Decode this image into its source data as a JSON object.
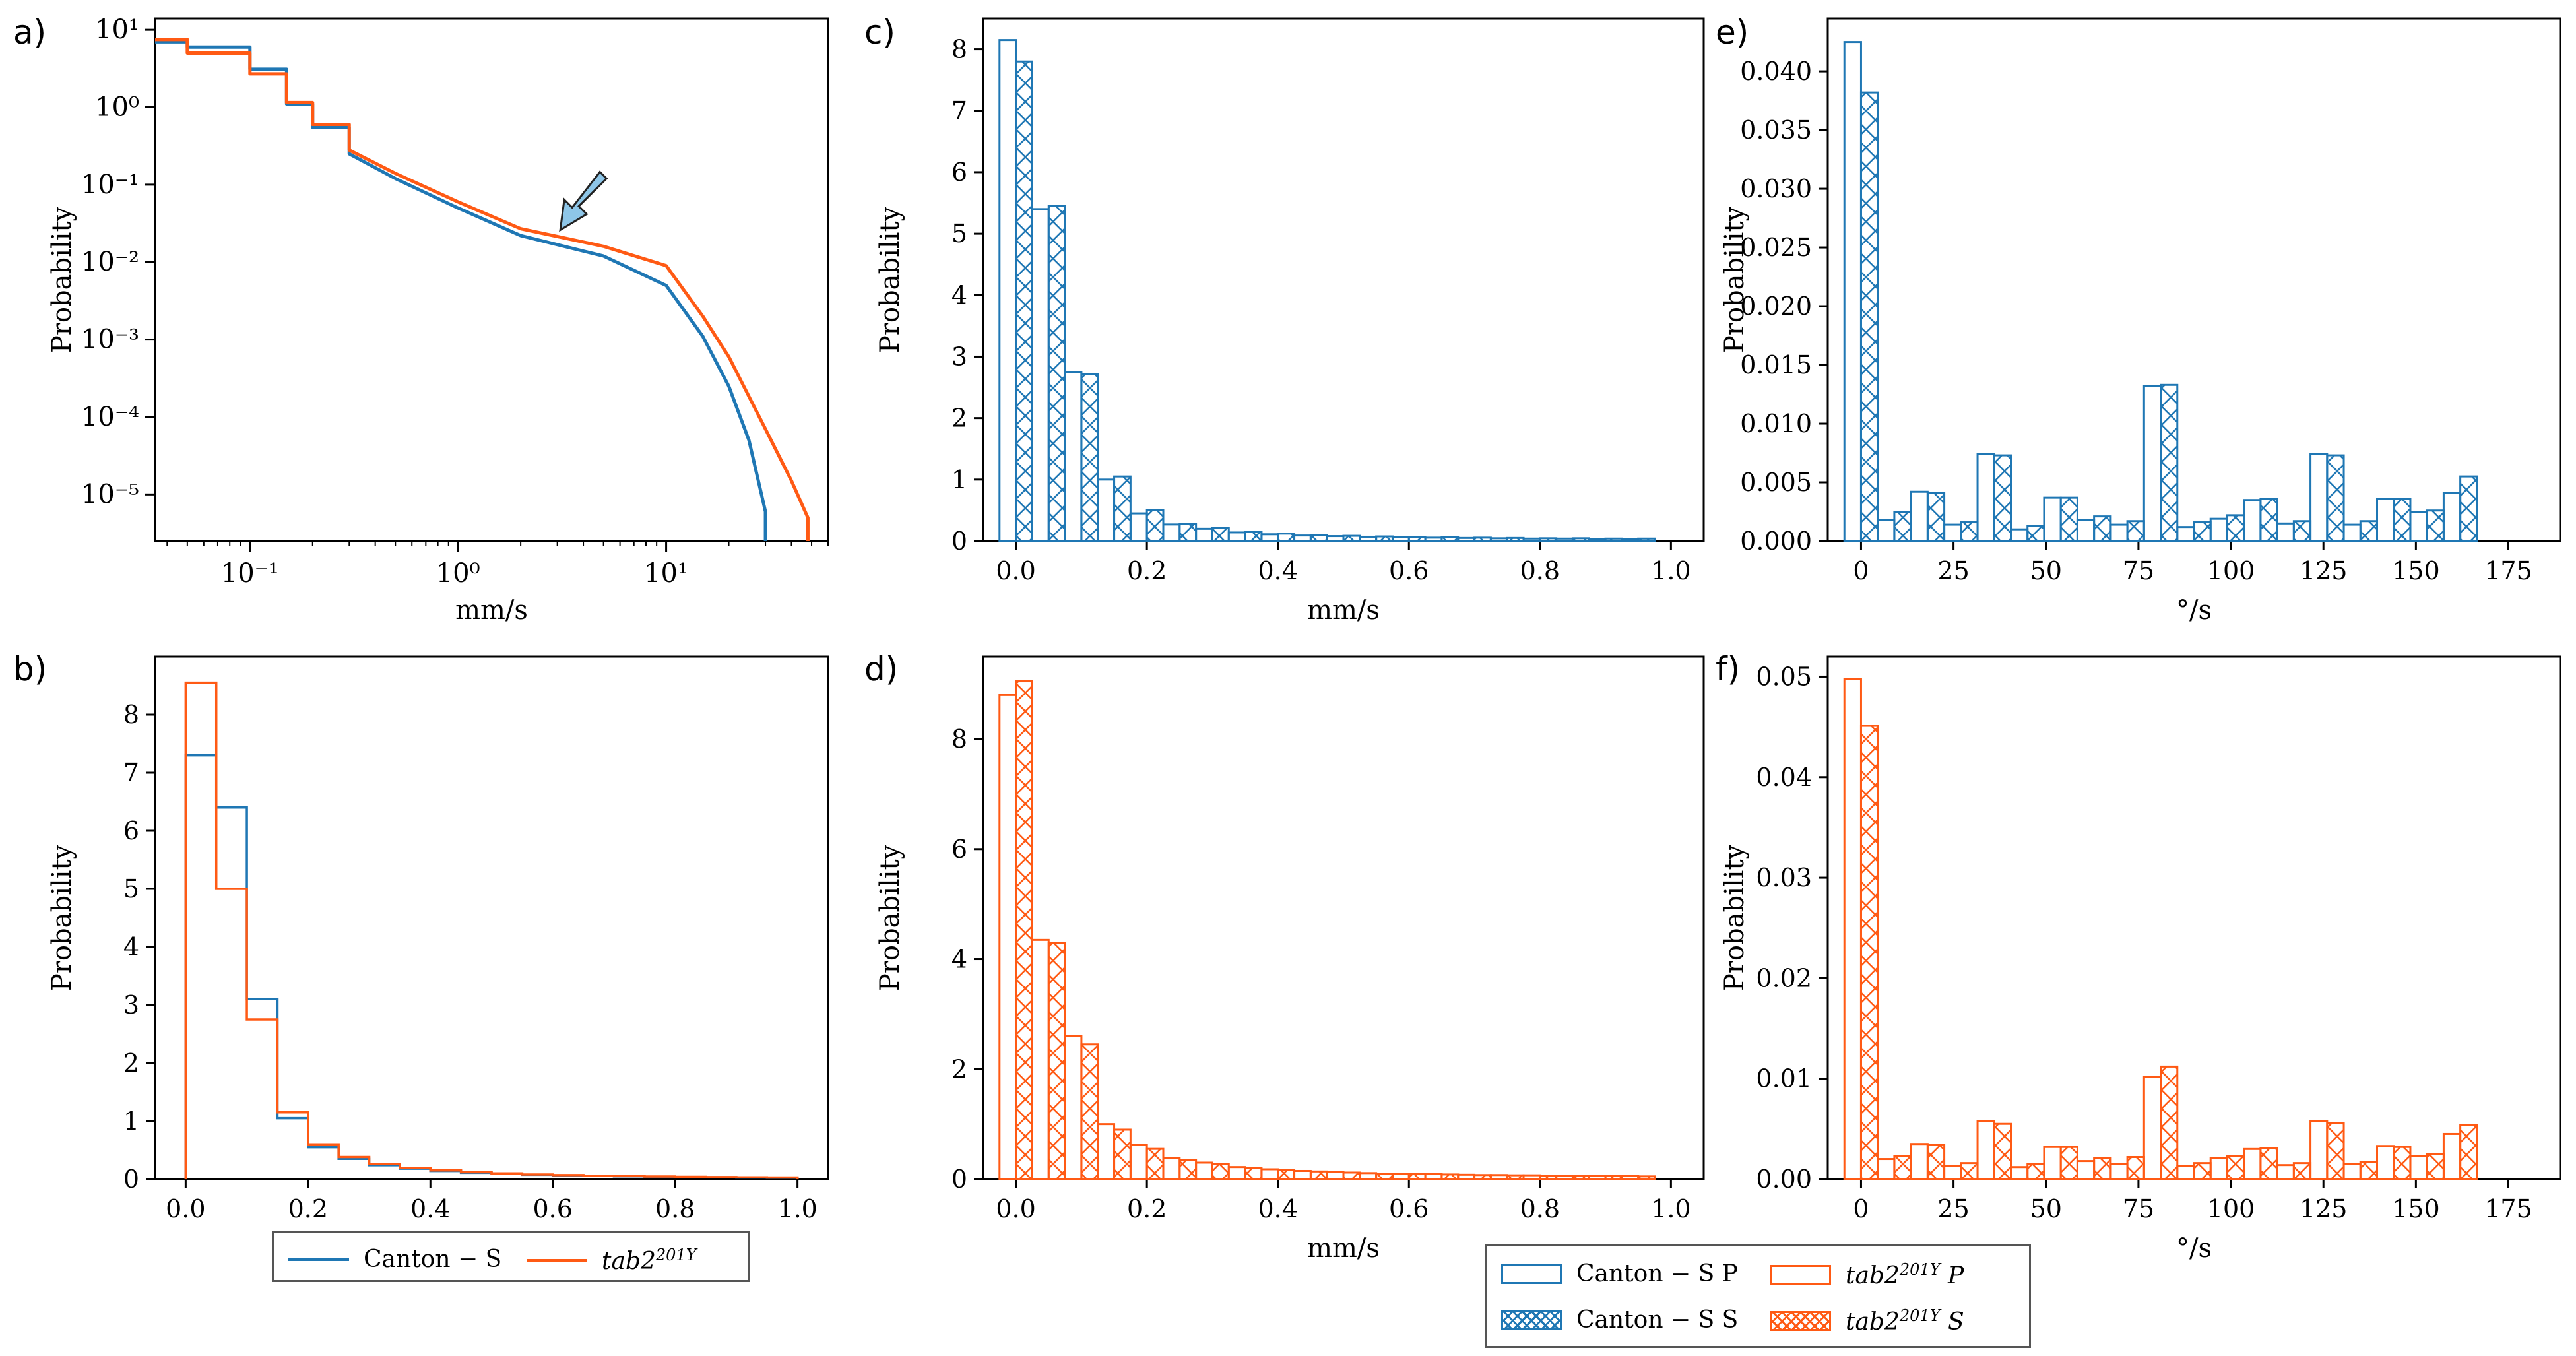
{
  "colors": {
    "canton": "#1f77b4",
    "tab2": "#ff5a14"
  },
  "panels": {
    "a": {
      "letter": "a)",
      "ylabel": "Probability",
      "xlabel": "mm/s",
      "xticks": [
        "10⁻¹",
        "10⁰",
        "10¹"
      ],
      "yticks": [
        "10¹",
        "10⁰",
        "10⁻¹",
        "10⁻²",
        "10⁻³",
        "10⁻⁴",
        "10⁻⁵"
      ]
    },
    "b": {
      "letter": "b)",
      "ylabel": "Probability",
      "xlabel": "mm/s"
    },
    "c": {
      "letter": "c)",
      "ylabel": "Probability",
      "xlabel": "mm/s"
    },
    "d": {
      "letter": "d)",
      "ylabel": "Probability",
      "xlabel": "mm/s"
    },
    "e": {
      "letter": "e)",
      "ylabel": "Probability",
      "xlabel": "°/s"
    },
    "f": {
      "letter": "f)",
      "ylabel": "Probability",
      "xlabel": "°/s"
    }
  },
  "legend1": {
    "canton": "Canton − S",
    "tab2": "tab2",
    "tab2_sup": "201Y"
  },
  "legend2": {
    "canton_p": "Canton − S P",
    "canton_s": "Canton − S S",
    "tab2": "tab2",
    "tab2_sup": "201Y",
    "tab2_p": " P",
    "tab2_s": " S"
  },
  "chart_data": [
    {
      "panel": "a",
      "type": "line",
      "title": "",
      "xlabel": "mm/s",
      "ylabel": "Probability",
      "xscale": "log",
      "yscale": "log",
      "xlim": [
        0.035,
        60
      ],
      "ylim": [
        2.5e-06,
        14
      ],
      "annotation": "arrow pointing at shoulder near 3 mm/s",
      "series": [
        {
          "name": "Canton − S",
          "color": "#1f77b4",
          "x": [
            0.035,
            0.05,
            0.1,
            0.15,
            0.2,
            0.3,
            0.5,
            1,
            2,
            5,
            10,
            15,
            20,
            25,
            30
          ],
          "y": [
            7,
            6,
            3.1,
            1.1,
            0.55,
            0.25,
            0.12,
            0.05,
            0.022,
            0.012,
            0.005,
            0.0011,
            0.00025,
            5e-05,
            6e-06
          ]
        },
        {
          "name": "tab2201Y",
          "color": "#ff5a14",
          "x": [
            0.035,
            0.05,
            0.1,
            0.15,
            0.2,
            0.3,
            0.5,
            1,
            2,
            5,
            10,
            15,
            20,
            30,
            40,
            48
          ],
          "y": [
            7.5,
            5,
            2.7,
            1.15,
            0.6,
            0.28,
            0.14,
            0.06,
            0.027,
            0.016,
            0.009,
            0.002,
            0.0006,
            7e-05,
            1.5e-05,
            5e-06
          ]
        }
      ]
    },
    {
      "panel": "b",
      "type": "bar",
      "title": "",
      "xlabel": "mm/s",
      "ylabel": "Probability",
      "bin_width": 0.05,
      "xlim": [
        -0.05,
        1.05
      ],
      "ylim": [
        0,
        9
      ],
      "xticks": [
        0.0,
        0.2,
        0.4,
        0.6,
        0.8,
        1.0
      ],
      "yticks": [
        0,
        1,
        2,
        3,
        4,
        5,
        6,
        7,
        8
      ],
      "series": [
        {
          "name": "Canton − S",
          "color": "#1f77b4",
          "values": [
            7.3,
            6.4,
            3.1,
            1.05,
            0.55,
            0.35,
            0.24,
            0.18,
            0.14,
            0.11,
            0.09,
            0.075,
            0.065,
            0.055,
            0.048,
            0.042,
            0.036,
            0.032,
            0.028,
            0.025
          ]
        },
        {
          "name": "tab2201Y",
          "color": "#ff5a14",
          "values": [
            8.55,
            5.0,
            2.75,
            1.15,
            0.6,
            0.38,
            0.26,
            0.19,
            0.15,
            0.12,
            0.1,
            0.08,
            0.07,
            0.06,
            0.052,
            0.045,
            0.04,
            0.035,
            0.031,
            0.028
          ]
        }
      ]
    },
    {
      "panel": "c",
      "type": "bar",
      "title": "",
      "xlabel": "mm/s",
      "ylabel": "Probability",
      "bin_width": 0.05,
      "xlim": [
        -0.05,
        1.05
      ],
      "ylim": [
        0,
        8.5
      ],
      "xticks": [
        0.0,
        0.2,
        0.4,
        0.6,
        0.8,
        1.0
      ],
      "yticks": [
        0,
        1,
        2,
        3,
        4,
        5,
        6,
        7,
        8
      ],
      "series": [
        {
          "name": "Canton − S P",
          "color": "#1f77b4",
          "hatch": false,
          "values": [
            8.15,
            5.4,
            2.75,
            1.0,
            0.45,
            0.27,
            0.2,
            0.14,
            0.11,
            0.09,
            0.08,
            0.07,
            0.06,
            0.055,
            0.05,
            0.045,
            0.04,
            0.04,
            0.035,
            0.035
          ]
        },
        {
          "name": "Canton − S S",
          "color": "#1f77b4",
          "hatch": true,
          "values": [
            7.8,
            5.45,
            2.72,
            1.05,
            0.5,
            0.28,
            0.22,
            0.15,
            0.12,
            0.1,
            0.085,
            0.075,
            0.065,
            0.06,
            0.055,
            0.05,
            0.045,
            0.045,
            0.04,
            0.04
          ]
        }
      ]
    },
    {
      "panel": "d",
      "type": "bar",
      "title": "",
      "xlabel": "mm/s",
      "ylabel": "Probability",
      "bin_width": 0.05,
      "xlim": [
        -0.05,
        1.05
      ],
      "ylim": [
        0,
        9.5
      ],
      "xticks": [
        0.0,
        0.2,
        0.4,
        0.6,
        0.8,
        1.0
      ],
      "yticks": [
        0,
        2,
        4,
        6,
        8
      ],
      "series": [
        {
          "name": "tab2201Y P",
          "color": "#ff5a14",
          "hatch": false,
          "values": [
            8.8,
            4.35,
            2.6,
            1.0,
            0.62,
            0.38,
            0.3,
            0.22,
            0.18,
            0.15,
            0.13,
            0.11,
            0.1,
            0.09,
            0.08,
            0.075,
            0.07,
            0.065,
            0.06,
            0.055
          ]
        },
        {
          "name": "tab2201Y S",
          "color": "#ff5a14",
          "hatch": true,
          "values": [
            9.05,
            4.3,
            2.45,
            0.9,
            0.55,
            0.35,
            0.28,
            0.2,
            0.17,
            0.14,
            0.12,
            0.1,
            0.095,
            0.085,
            0.075,
            0.07,
            0.065,
            0.06,
            0.055,
            0.05
          ]
        }
      ]
    },
    {
      "panel": "e",
      "type": "bar",
      "title": "",
      "xlabel": "°/s",
      "ylabel": "Probability",
      "bin_width": 9,
      "xlim": [
        -9,
        189
      ],
      "ylim": [
        0,
        0.0445
      ],
      "xticks": [
        0,
        25,
        50,
        75,
        100,
        125,
        150,
        175
      ],
      "yticks": [
        0.0,
        0.005,
        0.01,
        0.015,
        0.02,
        0.025,
        0.03,
        0.035,
        0.04
      ],
      "yticklabels": [
        "0.000",
        "0.005",
        "0.010",
        "0.015",
        "0.020",
        "0.025",
        "0.030",
        "0.035",
        "0.040"
      ],
      "series": [
        {
          "name": "Canton − S P",
          "color": "#1f77b4",
          "hatch": false,
          "values": [
            0.0425,
            0.0018,
            0.0042,
            0.0014,
            0.0074,
            0.001,
            0.0037,
            0.0018,
            0.0014,
            0.0132,
            0.0012,
            0.0019,
            0.0035,
            0.0015,
            0.0074,
            0.0014,
            0.0036,
            0.0025,
            0.0041
          ]
        },
        {
          "name": "Canton − S S",
          "color": "#1f77b4",
          "hatch": true,
          "values": [
            0.0382,
            0.0025,
            0.0041,
            0.0016,
            0.0073,
            0.0013,
            0.0037,
            0.0021,
            0.0017,
            0.0133,
            0.0016,
            0.0022,
            0.0036,
            0.0017,
            0.0073,
            0.0017,
            0.0036,
            0.0026,
            0.0055
          ]
        }
      ]
    },
    {
      "panel": "f",
      "type": "bar",
      "title": "",
      "xlabel": "°/s",
      "ylabel": "Probability",
      "bin_width": 9,
      "xlim": [
        -9,
        189
      ],
      "ylim": [
        0,
        0.052
      ],
      "xticks": [
        0,
        25,
        50,
        75,
        100,
        125,
        150,
        175
      ],
      "yticks": [
        0.0,
        0.01,
        0.02,
        0.03,
        0.04,
        0.05
      ],
      "yticklabels": [
        "0.00",
        "0.01",
        "0.02",
        "0.03",
        "0.04",
        "0.05"
      ],
      "series": [
        {
          "name": "tab2201Y P",
          "color": "#ff5a14",
          "hatch": false,
          "values": [
            0.0498,
            0.002,
            0.0035,
            0.0013,
            0.0058,
            0.0012,
            0.0032,
            0.0018,
            0.0015,
            0.0102,
            0.0013,
            0.0021,
            0.003,
            0.0014,
            0.0058,
            0.0015,
            0.0033,
            0.0023,
            0.0045
          ]
        },
        {
          "name": "tab2201Y S",
          "color": "#ff5a14",
          "hatch": true,
          "values": [
            0.0451,
            0.0023,
            0.0034,
            0.0016,
            0.0055,
            0.0015,
            0.0032,
            0.0021,
            0.0022,
            0.0112,
            0.0016,
            0.0023,
            0.0031,
            0.0016,
            0.0056,
            0.0017,
            0.0032,
            0.0025,
            0.0054
          ]
        }
      ]
    }
  ]
}
